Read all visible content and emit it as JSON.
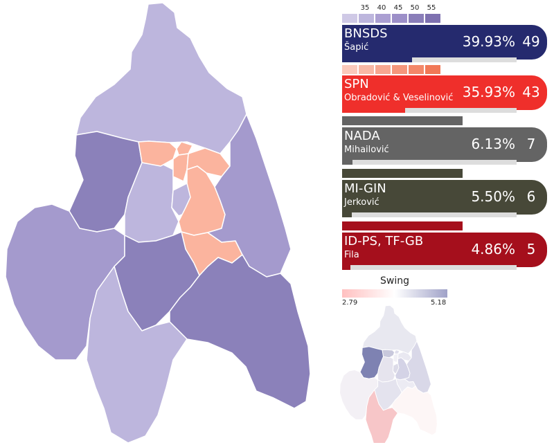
{
  "scale": {
    "ticks": [
      "35",
      "40",
      "45",
      "50",
      "55"
    ],
    "colors": [
      "#cfc9e6",
      "#bdb6dd",
      "#ab9fd2",
      "#9c8fc8",
      "#8a7eb9",
      "#7e71b0"
    ]
  },
  "parties": [
    {
      "short": "BNSDS",
      "leader": "Šapić",
      "percent": "39.93%",
      "seats": "49",
      "share": 39.93,
      "color": "#252a6e",
      "scale_colors": [
        "#cfc9e6",
        "#bdb6dd",
        "#ab9fd2",
        "#9c8fc8",
        "#8a7eb9",
        "#7e71b0"
      ]
    },
    {
      "short": "SPN",
      "leader": "Obradović & Veselinović",
      "percent": "35.93%",
      "seats": "43",
      "share": 35.93,
      "color": "#ef2f2b",
      "scale_colors": [
        "#fbc9bb",
        "#f9b8a6",
        "#f7a791",
        "#f5967c",
        "#f38769",
        "#f17857"
      ]
    },
    {
      "short": "NADA",
      "leader": "Mihailović",
      "percent": "6.13%",
      "seats": "7",
      "share": 6.13,
      "color": "#646464",
      "scale_colors": [
        "#646464"
      ]
    },
    {
      "short": "MI-GIN",
      "leader": "Jerković",
      "percent": "5.50%",
      "seats": "6",
      "share": 5.5,
      "color": "#474838",
      "scale_colors": [
        "#474838"
      ]
    },
    {
      "short": "ID-PS, TF-GB",
      "leader": "Fila",
      "percent": "4.86%",
      "seats": "5",
      "share": 4.86,
      "color": "#a50f1c",
      "scale_colors": [
        "#a50f1c"
      ]
    }
  ],
  "swing": {
    "title": "Swing",
    "min": "2.79",
    "max": "5.18"
  },
  "map_colors": {
    "bnsds_light": "#bdb6dd",
    "bnsds_mid": "#a49acd",
    "bnsds_dark": "#8b81ba",
    "spn_light": "#fbb49e",
    "border": "#ffffff"
  }
}
